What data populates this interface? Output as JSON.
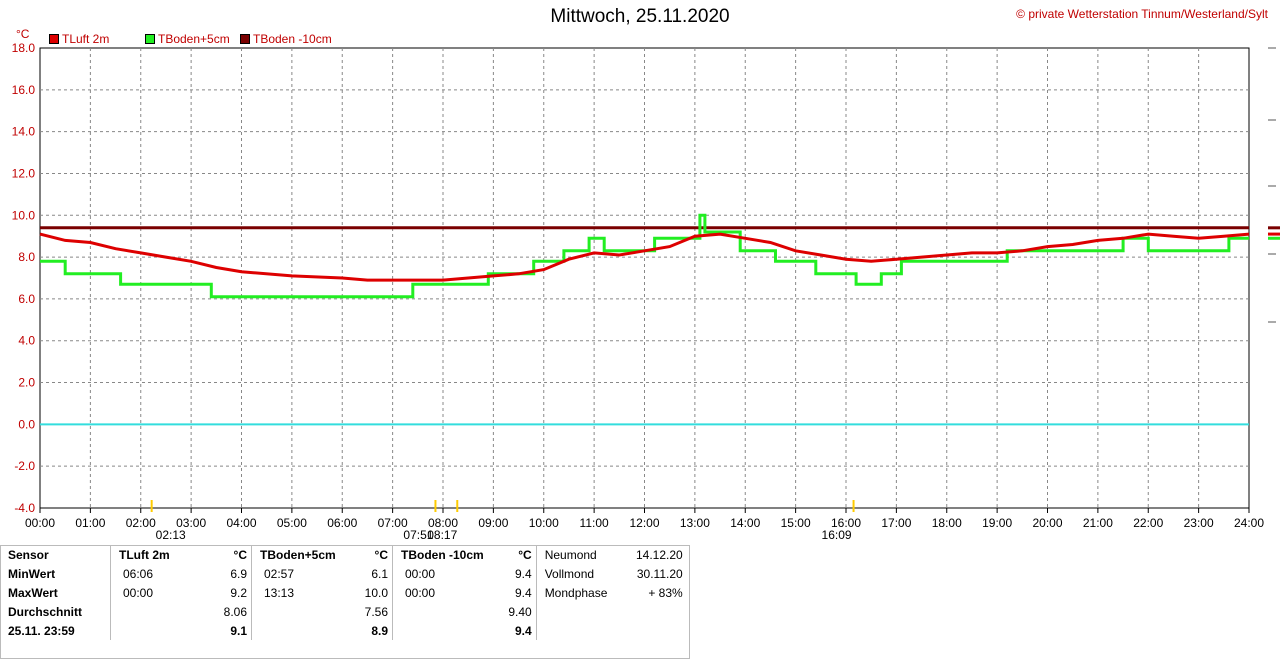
{
  "header": {
    "title": "Mittwoch, 25.11.2020",
    "copyright": "© private Wetterstation Tinnum/Westerland/Sylt",
    "unit": "°C"
  },
  "legend": [
    {
      "name": "TLuft 2m",
      "color": "#cc0000"
    },
    {
      "name": "TBoden+5cm",
      "color": "#00ee00"
    },
    {
      "name": "TBoden -10cm",
      "color": "#7a0000"
    }
  ],
  "chart_data": {
    "type": "line",
    "title": "Mittwoch, 25.11.2020",
    "ylabel": "°C",
    "ylim": [
      -4,
      18
    ],
    "xlim": [
      0,
      24
    ],
    "x_ticks": [
      "00:00",
      "01:00",
      "02:00",
      "03:00",
      "04:00",
      "05:00",
      "06:00",
      "07:00",
      "08:00",
      "09:00",
      "10:00",
      "11:00",
      "12:00",
      "13:00",
      "14:00",
      "15:00",
      "16:00",
      "17:00",
      "18:00",
      "19:00",
      "20:00",
      "21:00",
      "22:00",
      "23:00",
      "24:00"
    ],
    "y_ticks": [
      "18.0",
      "16.0",
      "14.0",
      "12.0",
      "10.0",
      "8.0",
      "6.0",
      "4.0",
      "2.0",
      "0.0",
      "-2.0",
      "-4.0"
    ],
    "grid": true,
    "reference_line": {
      "y": 0,
      "color": "#33dddd"
    },
    "series": [
      {
        "name": "TLuft 2m",
        "color": "#dd0000",
        "points": [
          [
            0,
            9.1
          ],
          [
            0.5,
            8.8
          ],
          [
            1,
            8.7
          ],
          [
            1.5,
            8.4
          ],
          [
            2,
            8.2
          ],
          [
            2.5,
            8.0
          ],
          [
            3,
            7.8
          ],
          [
            3.5,
            7.5
          ],
          [
            4,
            7.3
          ],
          [
            5,
            7.1
          ],
          [
            6,
            7.0
          ],
          [
            6.5,
            6.9
          ],
          [
            7,
            6.9
          ],
          [
            8,
            6.9
          ],
          [
            8.5,
            7.0
          ],
          [
            9,
            7.1
          ],
          [
            9.5,
            7.2
          ],
          [
            10,
            7.4
          ],
          [
            10.5,
            7.9
          ],
          [
            11,
            8.2
          ],
          [
            11.5,
            8.1
          ],
          [
            12,
            8.3
          ],
          [
            12.5,
            8.5
          ],
          [
            13,
            9.0
          ],
          [
            13.5,
            9.1
          ],
          [
            14,
            8.9
          ],
          [
            14.5,
            8.7
          ],
          [
            15,
            8.3
          ],
          [
            15.5,
            8.1
          ],
          [
            16,
            7.9
          ],
          [
            16.5,
            7.8
          ],
          [
            17,
            7.9
          ],
          [
            17.5,
            8.0
          ],
          [
            18,
            8.1
          ],
          [
            18.5,
            8.2
          ],
          [
            19,
            8.2
          ],
          [
            19.5,
            8.3
          ],
          [
            20,
            8.5
          ],
          [
            20.5,
            8.6
          ],
          [
            21,
            8.8
          ],
          [
            21.5,
            8.9
          ],
          [
            22,
            9.1
          ],
          [
            22.5,
            9.0
          ],
          [
            23,
            8.9
          ],
          [
            23.5,
            9.0
          ],
          [
            24,
            9.1
          ]
        ]
      },
      {
        "name": "TBoden+5cm",
        "color": "#22ee22",
        "points": [
          [
            0,
            7.8
          ],
          [
            0.5,
            7.8
          ],
          [
            0.5,
            7.2
          ],
          [
            1.6,
            7.2
          ],
          [
            1.6,
            6.7
          ],
          [
            3.4,
            6.7
          ],
          [
            3.4,
            6.1
          ],
          [
            7.4,
            6.1
          ],
          [
            7.4,
            6.7
          ],
          [
            8.9,
            6.7
          ],
          [
            8.9,
            7.2
          ],
          [
            9.8,
            7.2
          ],
          [
            9.8,
            7.8
          ],
          [
            10.4,
            7.8
          ],
          [
            10.4,
            8.3
          ],
          [
            10.9,
            8.3
          ],
          [
            10.9,
            8.9
          ],
          [
            11.2,
            8.9
          ],
          [
            11.2,
            8.3
          ],
          [
            12.2,
            8.3
          ],
          [
            12.2,
            8.9
          ],
          [
            13.1,
            8.9
          ],
          [
            13.1,
            10.0
          ],
          [
            13.2,
            10.0
          ],
          [
            13.2,
            9.2
          ],
          [
            13.9,
            9.2
          ],
          [
            13.9,
            8.3
          ],
          [
            14.6,
            8.3
          ],
          [
            14.6,
            7.8
          ],
          [
            15.4,
            7.8
          ],
          [
            15.4,
            7.2
          ],
          [
            16.2,
            7.2
          ],
          [
            16.2,
            6.7
          ],
          [
            16.7,
            6.7
          ],
          [
            16.7,
            7.2
          ],
          [
            17.1,
            7.2
          ],
          [
            17.1,
            7.8
          ],
          [
            19.2,
            7.8
          ],
          [
            19.2,
            8.3
          ],
          [
            21.5,
            8.3
          ],
          [
            21.5,
            8.9
          ],
          [
            22.0,
            8.9
          ],
          [
            22.0,
            8.3
          ],
          [
            23.6,
            8.3
          ],
          [
            23.6,
            8.9
          ],
          [
            24,
            8.9
          ]
        ]
      },
      {
        "name": "TBoden -10cm",
        "color": "#7a0000",
        "points": [
          [
            0,
            9.4
          ],
          [
            24,
            9.4
          ]
        ]
      }
    ]
  },
  "sun": {
    "sunrise": "07:51",
    "sunset": "16:09",
    "moonrise": "02:13",
    "moonset": "08:17"
  },
  "stats": {
    "headers": {
      "sensor": "Sensor",
      "tluft": "TLuft 2m",
      "tboden5": "TBoden+5cm",
      "tboden10": "TBoden -10cm",
      "unit": "°C"
    },
    "rows": [
      {
        "label": "MinWert",
        "tluft_time": "06:06",
        "tluft_val": "6.9",
        "t5_time": "02:57",
        "t5_val": "6.1",
        "t10_time": "00:00",
        "t10_val": "9.4"
      },
      {
        "label": "MaxWert",
        "tluft_time": "00:00",
        "tluft_val": "9.2",
        "t5_time": "13:13",
        "t5_val": "10.0",
        "t10_time": "00:00",
        "t10_val": "9.4"
      },
      {
        "label": "Durchschnitt",
        "tluft_time": "",
        "tluft_val": "8.06",
        "t5_time": "",
        "t5_val": "7.56",
        "t10_time": "",
        "t10_val": "9.40"
      },
      {
        "label": "25.11. 23:59",
        "tluft_time": "",
        "tluft_val": "9.1",
        "t5_time": "",
        "t5_val": "8.9",
        "t10_time": "",
        "t10_val": "9.4"
      }
    ],
    "moon": [
      {
        "label": "Neumond",
        "value": "14.12.20"
      },
      {
        "label": "Vollmond",
        "value": "30.11.20"
      },
      {
        "label": "Mondphase",
        "value": "+ 83%"
      }
    ]
  }
}
